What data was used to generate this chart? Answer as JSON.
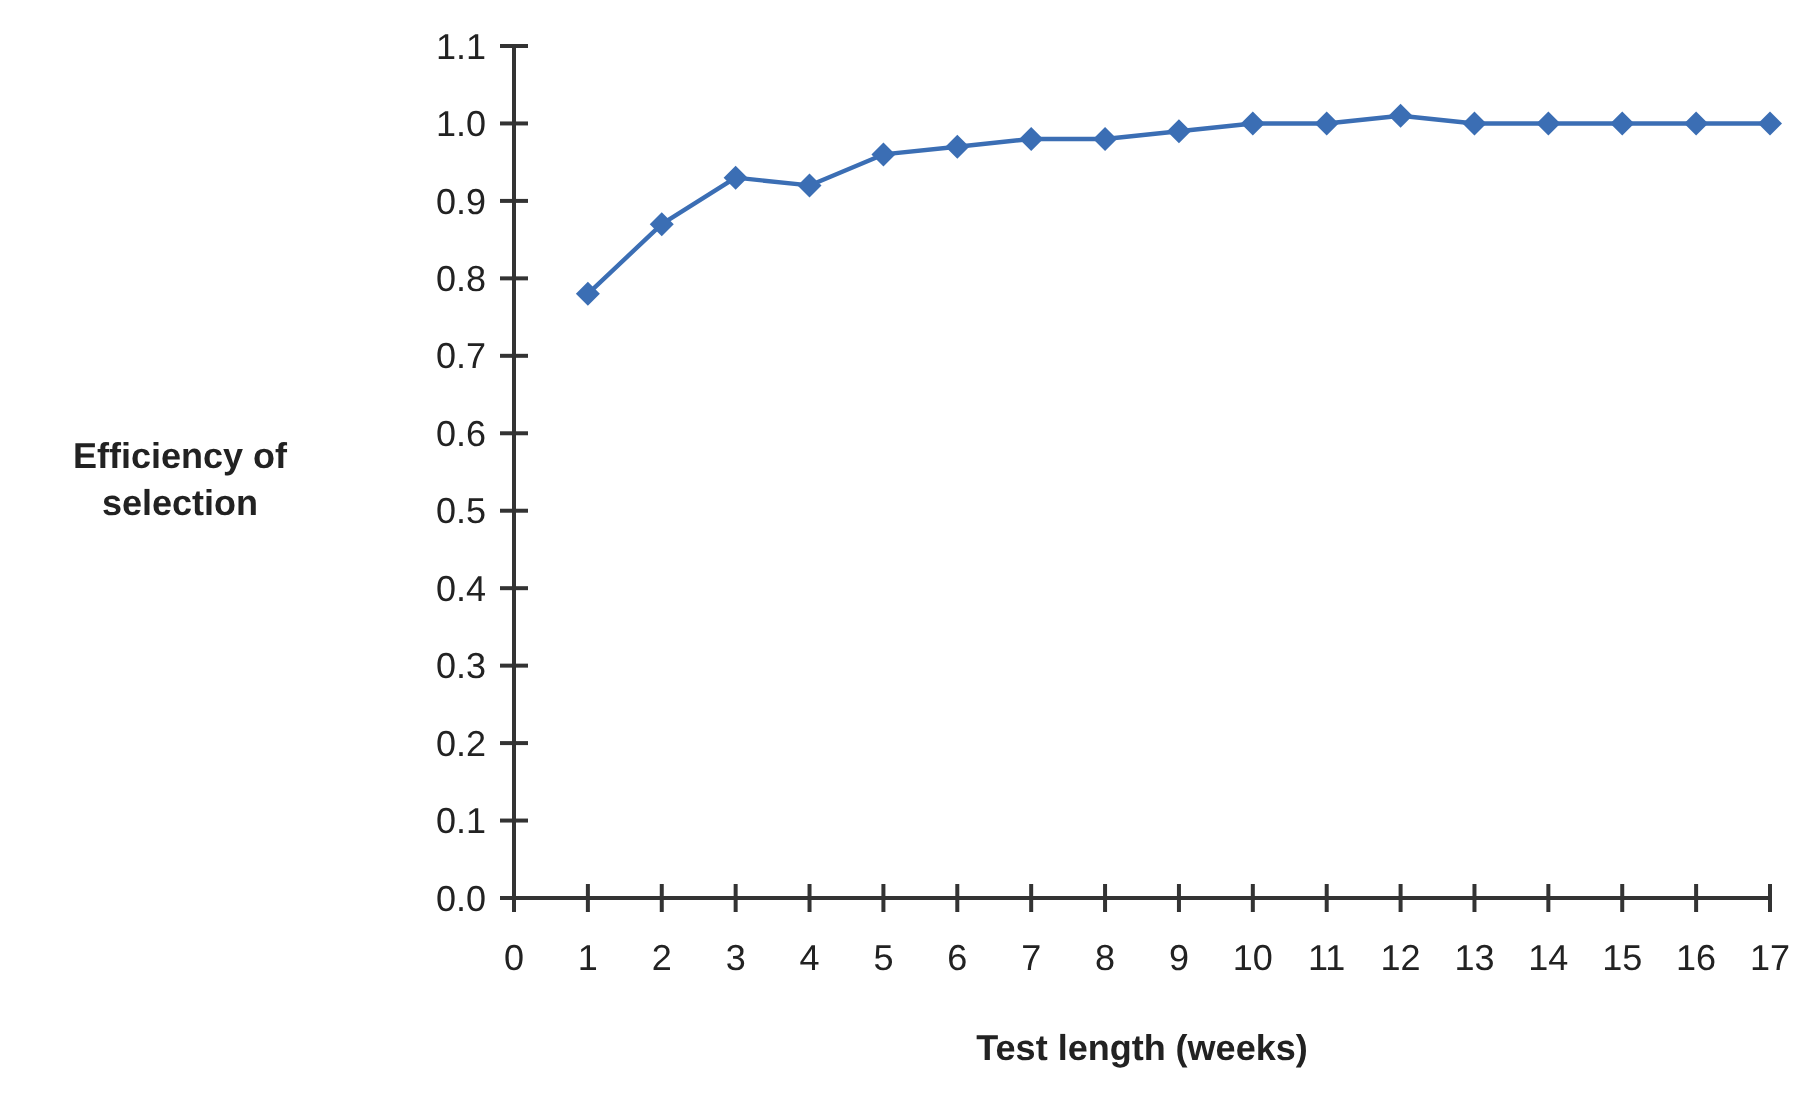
{
  "chart_data": {
    "type": "line",
    "xlabel": "Test length (weeks)",
    "ylabel": "Efficiency of selection",
    "x": [
      1,
      2,
      3,
      4,
      5,
      6,
      7,
      8,
      9,
      10,
      11,
      12,
      13,
      14,
      15,
      16,
      17
    ],
    "series": [
      {
        "color": "#3b6eb4",
        "values": [
          0.78,
          0.87,
          0.93,
          0.92,
          0.96,
          0.97,
          0.98,
          0.98,
          0.99,
          1.0,
          1.0,
          1.01,
          1.0,
          1.0,
          1.0,
          1.0,
          1.0
        ]
      }
    ],
    "xlim": [
      0,
      17
    ],
    "xticks": [
      0,
      1,
      2,
      3,
      4,
      5,
      6,
      7,
      8,
      9,
      10,
      11,
      12,
      13,
      14,
      15,
      16,
      17
    ],
    "ylim": [
      0,
      1.1
    ],
    "yticks": [
      {
        "value": 0,
        "label": "0.0"
      },
      0.1,
      0.2,
      0.3,
      0.4,
      0.5,
      0.6,
      0.7,
      0.8,
      0.9,
      {
        "value": 1,
        "label": "1.0"
      },
      1.1
    ],
    "grid": false,
    "marker": "diamond",
    "line_style": "solid"
  }
}
